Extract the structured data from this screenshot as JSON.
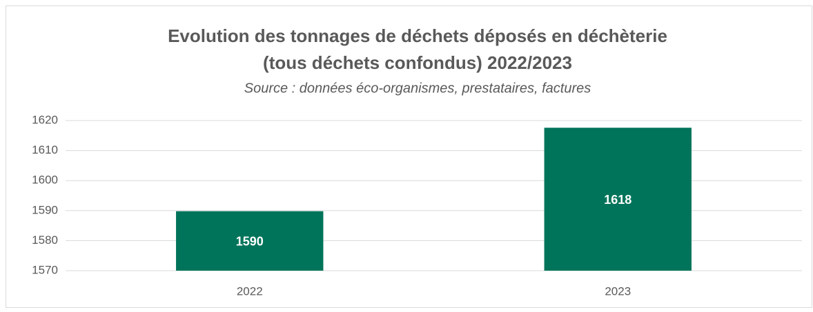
{
  "chart_data": {
    "type": "bar",
    "title": [
      "Evolution des tonnages de déchets déposés en déchèterie",
      "(tous déchets confondus) 2022/2023"
    ],
    "subtitle": "Source : données éco-organismes, prestataires, factures",
    "categories": [
      "2022",
      "2023"
    ],
    "values": [
      1589.8,
      1617.6
    ],
    "value_labels": [
      "1590",
      "1618"
    ],
    "color": "#00745a",
    "ylim": [
      1570,
      1620
    ],
    "yticks": [
      1570,
      1580,
      1590,
      1600,
      1610,
      1620
    ],
    "grid": true
  }
}
